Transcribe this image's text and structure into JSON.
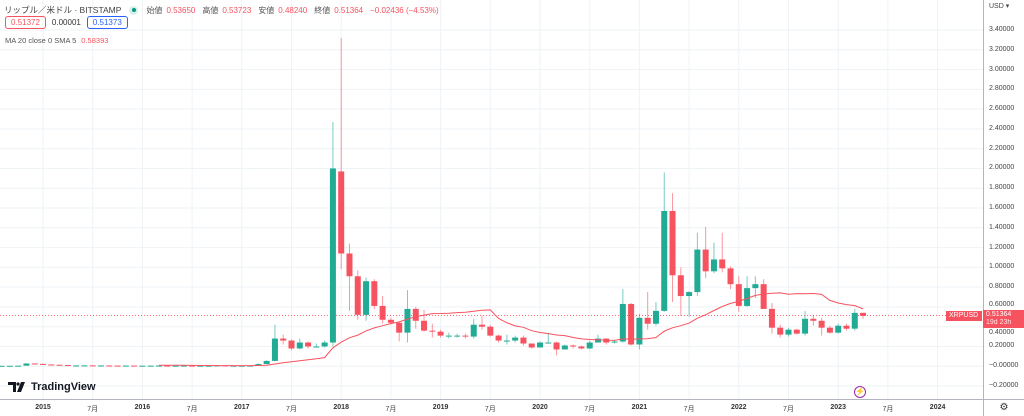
{
  "header": {
    "symbol": "リップル／米ドル · BITSTAMP",
    "open_label": "始値",
    "open": "0.53650",
    "high_label": "高値",
    "high": "0.53723",
    "low_label": "安値",
    "low": "0.48240",
    "close_label": "終値",
    "close": "0.51364",
    "change": "−0.02436 (−4.53%)"
  },
  "quote": {
    "bid": "0.51372",
    "spread": "0.00001",
    "ask": "0.51373"
  },
  "indicator": {
    "label": "MA 20 close 0 SMA 5",
    "value": "0.58393"
  },
  "price_axis": {
    "currency": "USD ▾",
    "labels": [
      "3.40000",
      "3.20000",
      "3.00000",
      "2.80000",
      "2.60000",
      "2.40000",
      "2.20000",
      "2.00000",
      "1.80000",
      "1.60000",
      "1.40000",
      "1.20000",
      "1.00000",
      "0.80000",
      "0.60000",
      "0.40000",
      "0.20000",
      "−0.00000",
      "−0.20000"
    ]
  },
  "price_label": {
    "symbol": "XRPUSD",
    "price": "0.51364",
    "countdown": "19d 23h"
  },
  "time_axis": [
    "2015",
    "7月",
    "2016",
    "7月",
    "2017",
    "7月",
    "2018",
    "7月",
    "2019",
    "7月",
    "2020",
    "7月",
    "2021",
    "7月",
    "2022",
    "7月",
    "2023",
    "7月",
    "2024"
  ],
  "brand": "TradingView",
  "colors": {
    "up": "#22ab94",
    "down": "#f7525f",
    "ma": "#f7525f"
  },
  "chart_data": {
    "type": "candlestick",
    "title": "リップル／米ドル · BITSTAMP",
    "interval": "1M",
    "start": "2014-08",
    "ylim": [
      -0.3,
      3.5
    ],
    "ohlc": [
      [
        0.005,
        0.006,
        0.004,
        0.005
      ],
      [
        0.005,
        0.006,
        0.004,
        0.005
      ],
      [
        0.005,
        0.006,
        0.004,
        0.006
      ],
      [
        0.006,
        0.03,
        0.006,
        0.028
      ],
      [
        0.028,
        0.03,
        0.02,
        0.024
      ],
      [
        0.024,
        0.026,
        0.017,
        0.018
      ],
      [
        0.018,
        0.019,
        0.013,
        0.015
      ],
      [
        0.015,
        0.016,
        0.01,
        0.012
      ],
      [
        0.012,
        0.013,
        0.006,
        0.007
      ],
      [
        0.007,
        0.012,
        0.006,
        0.008
      ],
      [
        0.008,
        0.01,
        0.007,
        0.009
      ],
      [
        0.009,
        0.01,
        0.008,
        0.008
      ],
      [
        0.008,
        0.009,
        0.007,
        0.008
      ],
      [
        0.008,
        0.009,
        0.006,
        0.007
      ],
      [
        0.007,
        0.008,
        0.005,
        0.006
      ],
      [
        0.006,
        0.008,
        0.005,
        0.007
      ],
      [
        0.007,
        0.008,
        0.006,
        0.006
      ],
      [
        0.006,
        0.007,
        0.005,
        0.006
      ],
      [
        0.006,
        0.007,
        0.005,
        0.006
      ],
      [
        0.006,
        0.008,
        0.006,
        0.007
      ],
      [
        0.007,
        0.007,
        0.006,
        0.006
      ],
      [
        0.006,
        0.007,
        0.006,
        0.006
      ],
      [
        0.006,
        0.007,
        0.006,
        0.007
      ],
      [
        0.007,
        0.007,
        0.006,
        0.006
      ],
      [
        0.006,
        0.007,
        0.006,
        0.006
      ],
      [
        0.006,
        0.007,
        0.006,
        0.006
      ],
      [
        0.006,
        0.01,
        0.006,
        0.009
      ],
      [
        0.009,
        0.01,
        0.006,
        0.006
      ],
      [
        0.006,
        0.007,
        0.006,
        0.006
      ],
      [
        0.006,
        0.007,
        0.006,
        0.006
      ],
      [
        0.006,
        0.007,
        0.006,
        0.007
      ],
      [
        0.007,
        0.03,
        0.006,
        0.022
      ],
      [
        0.022,
        0.06,
        0.022,
        0.054
      ],
      [
        0.054,
        0.42,
        0.05,
        0.28
      ],
      [
        0.28,
        0.32,
        0.22,
        0.26
      ],
      [
        0.26,
        0.27,
        0.16,
        0.18
      ],
      [
        0.18,
        0.28,
        0.17,
        0.24
      ],
      [
        0.24,
        0.25,
        0.18,
        0.2
      ],
      [
        0.2,
        0.23,
        0.19,
        0.2
      ],
      [
        0.2,
        0.26,
        0.19,
        0.24
      ],
      [
        0.24,
        2.47,
        0.2,
        2.0
      ],
      [
        1.97,
        3.32,
        0.98,
        1.14
      ],
      [
        1.14,
        1.24,
        0.56,
        0.91
      ],
      [
        0.91,
        0.97,
        0.47,
        0.52
      ],
      [
        0.52,
        0.9,
        0.46,
        0.86
      ],
      [
        0.86,
        0.88,
        0.58,
        0.61
      ],
      [
        0.61,
        0.71,
        0.43,
        0.47
      ],
      [
        0.47,
        0.49,
        0.42,
        0.44
      ],
      [
        0.44,
        0.45,
        0.25,
        0.34
      ],
      [
        0.34,
        0.77,
        0.24,
        0.58
      ],
      [
        0.58,
        0.6,
        0.38,
        0.46
      ],
      [
        0.46,
        0.57,
        0.35,
        0.36
      ],
      [
        0.36,
        0.43,
        0.29,
        0.35
      ],
      [
        0.35,
        0.37,
        0.29,
        0.31
      ],
      [
        0.31,
        0.34,
        0.28,
        0.31
      ],
      [
        0.31,
        0.33,
        0.29,
        0.31
      ],
      [
        0.31,
        0.33,
        0.28,
        0.3
      ],
      [
        0.3,
        0.48,
        0.28,
        0.42
      ],
      [
        0.42,
        0.51,
        0.37,
        0.4
      ],
      [
        0.4,
        0.42,
        0.3,
        0.31
      ],
      [
        0.31,
        0.32,
        0.24,
        0.26
      ],
      [
        0.26,
        0.32,
        0.22,
        0.26
      ],
      [
        0.26,
        0.31,
        0.24,
        0.29
      ],
      [
        0.29,
        0.31,
        0.21,
        0.23
      ],
      [
        0.23,
        0.23,
        0.18,
        0.19
      ],
      [
        0.19,
        0.25,
        0.19,
        0.24
      ],
      [
        0.24,
        0.34,
        0.23,
        0.24
      ],
      [
        0.24,
        0.25,
        0.11,
        0.17
      ],
      [
        0.17,
        0.22,
        0.17,
        0.21
      ],
      [
        0.21,
        0.22,
        0.18,
        0.2
      ],
      [
        0.2,
        0.21,
        0.17,
        0.18
      ],
      [
        0.18,
        0.26,
        0.17,
        0.24
      ],
      [
        0.24,
        0.32,
        0.24,
        0.28
      ],
      [
        0.28,
        0.28,
        0.22,
        0.24
      ],
      [
        0.24,
        0.26,
        0.23,
        0.25
      ],
      [
        0.25,
        0.78,
        0.24,
        0.63
      ],
      [
        0.63,
        0.64,
        0.21,
        0.22
      ],
      [
        0.22,
        0.53,
        0.17,
        0.49
      ],
      [
        0.49,
        0.75,
        0.37,
        0.43
      ],
      [
        0.43,
        0.65,
        0.41,
        0.56
      ],
      [
        0.56,
        1.96,
        0.55,
        1.57
      ],
      [
        1.57,
        1.75,
        0.65,
        0.92
      ],
      [
        0.92,
        1.0,
        0.51,
        0.71
      ],
      [
        0.71,
        0.76,
        0.5,
        0.75
      ],
      [
        0.75,
        1.35,
        0.71,
        1.18
      ],
      [
        1.18,
        1.41,
        0.89,
        0.96
      ],
      [
        0.96,
        1.25,
        0.94,
        1.08
      ],
      [
        1.08,
        1.35,
        0.95,
        0.99
      ],
      [
        0.99,
        1.01,
        0.78,
        0.83
      ],
      [
        0.83,
        0.91,
        0.55,
        0.61
      ],
      [
        0.61,
        0.91,
        0.6,
        0.79
      ],
      [
        0.79,
        0.91,
        0.69,
        0.83
      ],
      [
        0.83,
        0.88,
        0.58,
        0.58
      ],
      [
        0.58,
        0.64,
        0.33,
        0.39
      ],
      [
        0.39,
        0.42,
        0.29,
        0.32
      ],
      [
        0.32,
        0.39,
        0.3,
        0.37
      ],
      [
        0.37,
        0.38,
        0.32,
        0.33
      ],
      [
        0.33,
        0.56,
        0.31,
        0.48
      ],
      [
        0.48,
        0.52,
        0.41,
        0.46
      ],
      [
        0.46,
        0.49,
        0.31,
        0.39
      ],
      [
        0.39,
        0.41,
        0.33,
        0.34
      ],
      [
        0.34,
        0.43,
        0.33,
        0.41
      ],
      [
        0.41,
        0.43,
        0.36,
        0.38
      ],
      [
        0.38,
        0.58,
        0.36,
        0.54
      ],
      [
        0.54,
        0.54,
        0.48,
        0.51
      ]
    ],
    "ma_period": 20
  }
}
